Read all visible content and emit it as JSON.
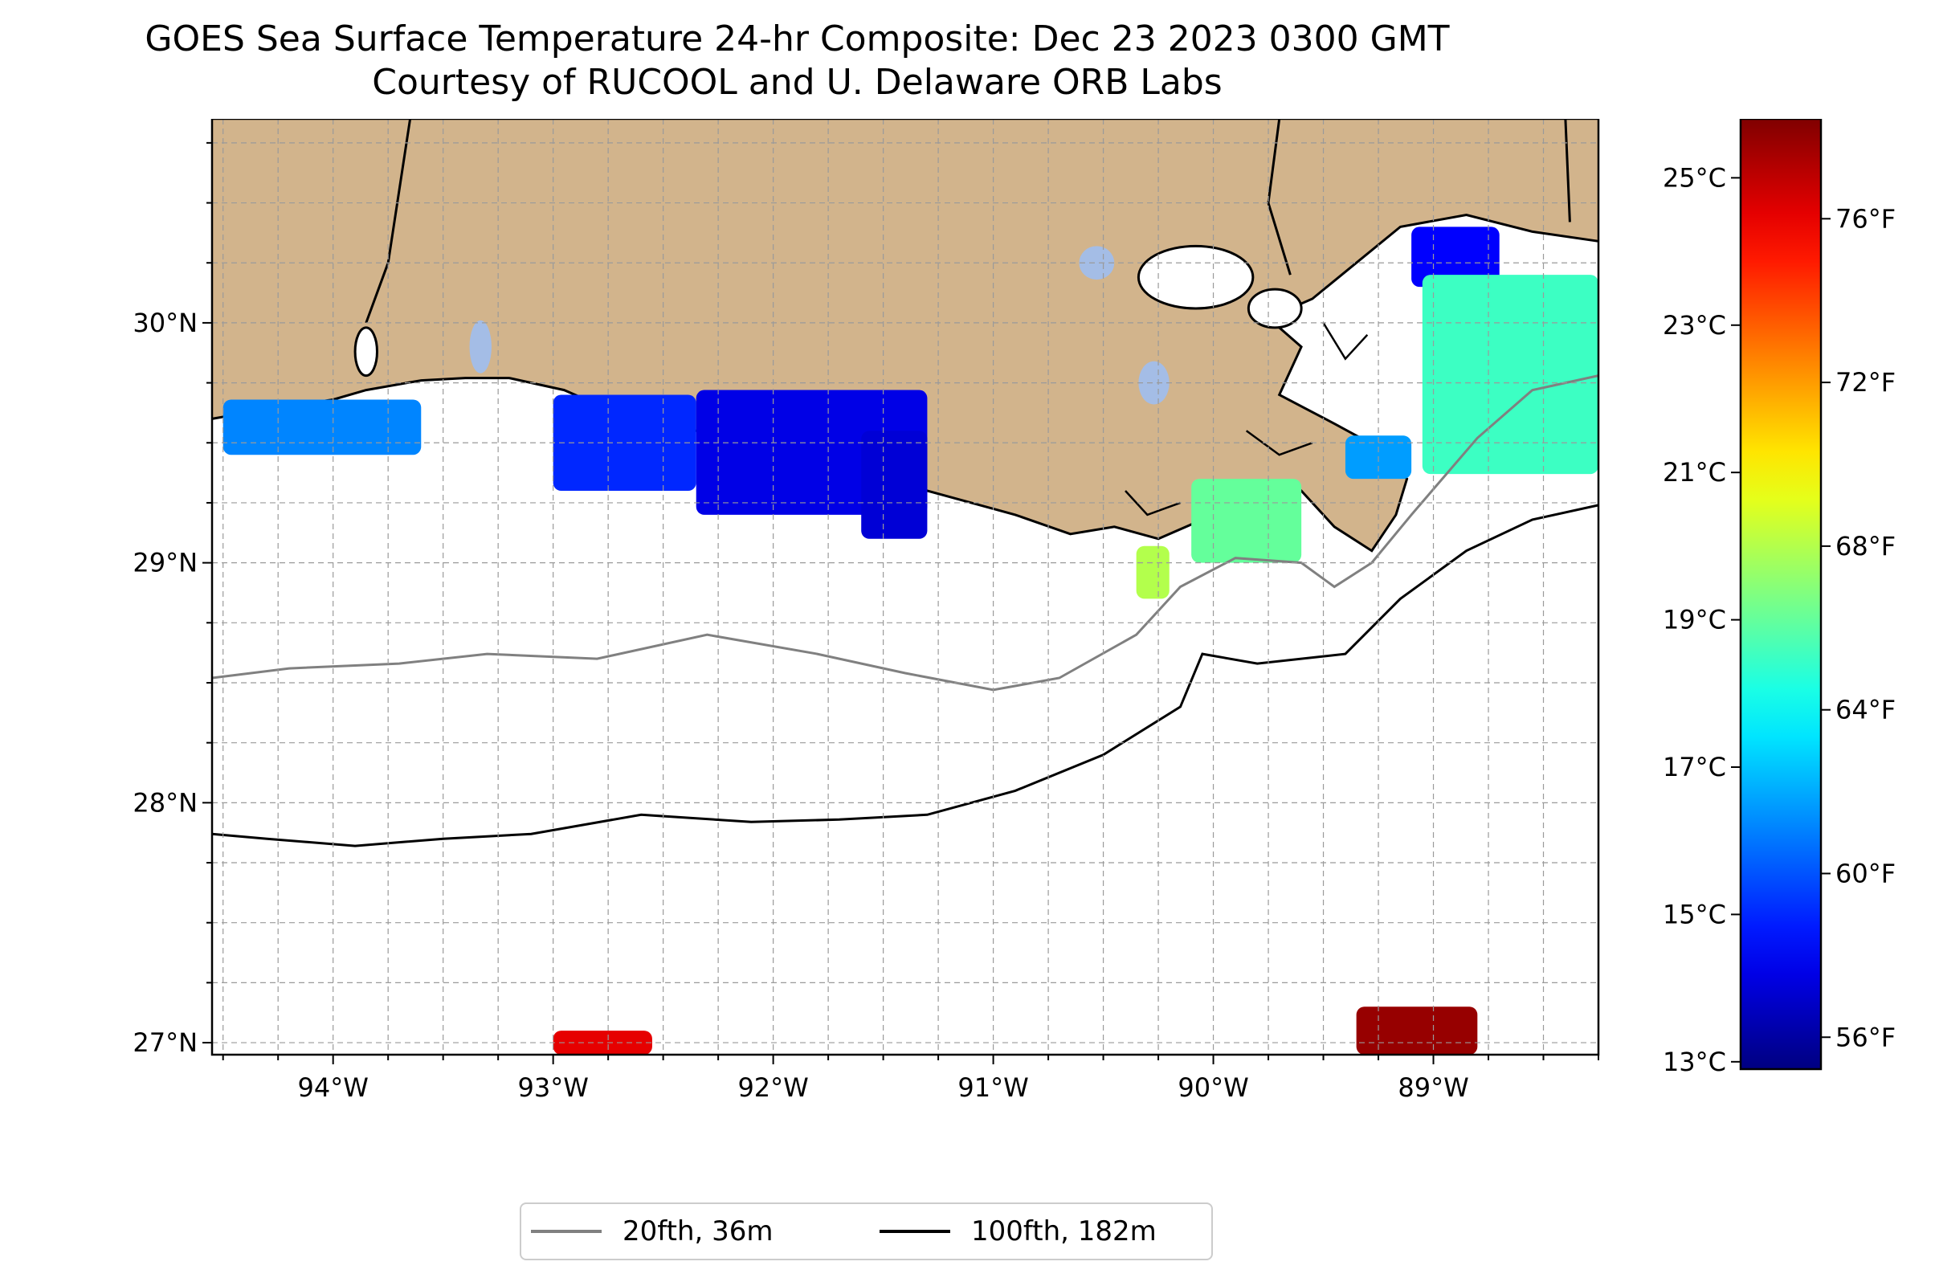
{
  "title": {
    "line1": "GOES Sea Surface Temperature 24-hr Composite: Dec 23 2023 0300 GMT",
    "line2": "Courtesy of RUCOOL and U. Delaware ORB Labs"
  },
  "map": {
    "lon_range": [
      -94.55,
      -88.25
    ],
    "lat_range": [
      26.95,
      30.85
    ],
    "lon_ticks": [
      {
        "value": -94,
        "label": "94°W"
      },
      {
        "value": -93,
        "label": "93°W"
      },
      {
        "value": -92,
        "label": "92°W"
      },
      {
        "value": -91,
        "label": "91°W"
      },
      {
        "value": -90,
        "label": "90°W"
      },
      {
        "value": -89,
        "label": "89°W"
      }
    ],
    "lat_ticks": [
      {
        "value": 30,
        "label": "30°N"
      },
      {
        "value": 29,
        "label": "29°N"
      },
      {
        "value": 28,
        "label": "28°N"
      },
      {
        "value": 27,
        "label": "27°N"
      }
    ],
    "gridlines": true,
    "land_color": "#d2b48c",
    "coast_color": "#000000",
    "sst_patches": [
      {
        "name": "sabine-patch",
        "lon": [
          -94.5,
          -93.6
        ],
        "lat": [
          29.45,
          29.68
        ],
        "temp_c": 16.2
      },
      {
        "name": "calcasieu-patch",
        "lon": [
          -93.0,
          -92.35
        ],
        "lat": [
          29.3,
          29.7
        ],
        "temp_c": 15.0
      },
      {
        "name": "vermilion-patch",
        "lon": [
          -92.35,
          -91.3
        ],
        "lat": [
          29.2,
          29.72
        ],
        "temp_c": 14.2
      },
      {
        "name": "atchafalaya-patch",
        "lon": [
          -91.6,
          -91.3
        ],
        "lat": [
          29.1,
          29.55
        ],
        "temp_c": 14.0
      },
      {
        "name": "timbalier-patch",
        "lon": [
          -90.35,
          -90.2
        ],
        "lat": [
          28.85,
          29.07
        ],
        "temp_c": 20.0
      },
      {
        "name": "grand-isle-patch",
        "lon": [
          -90.1,
          -89.6
        ],
        "lat": [
          29.0,
          29.35
        ],
        "temp_c": 19.0
      },
      {
        "name": "bird-foot-patch",
        "lon": [
          -89.4,
          -89.1
        ],
        "lat": [
          29.35,
          29.53
        ],
        "temp_c": 16.5
      },
      {
        "name": "mississippi-sound-patch",
        "lon": [
          -89.1,
          -88.7
        ],
        "lat": [
          30.15,
          30.4
        ],
        "temp_c": 14.5
      },
      {
        "name": "chandeleur-patch",
        "lon": [
          -89.05,
          -88.25
        ],
        "lat": [
          29.37,
          30.2
        ],
        "temp_c": 18.5
      },
      {
        "name": "offshore-patch-south-1",
        "lon": [
          -93.0,
          -92.55
        ],
        "lat": [
          26.95,
          27.05
        ],
        "temp_c": 24.5
      },
      {
        "name": "offshore-patch-south-2",
        "lon": [
          -89.35,
          -88.8
        ],
        "lat": [
          26.95,
          27.15
        ],
        "temp_c": 25.5
      }
    ]
  },
  "colorbar": {
    "c_range": [
      12.9,
      25.8
    ],
    "celsius_ticks": [
      {
        "value": 13,
        "label": "13°C"
      },
      {
        "value": 15,
        "label": "15°C"
      },
      {
        "value": 17,
        "label": "17°C"
      },
      {
        "value": 19,
        "label": "19°C"
      },
      {
        "value": 21,
        "label": "21°C"
      },
      {
        "value": 23,
        "label": "23°C"
      },
      {
        "value": 25,
        "label": "25°C"
      }
    ],
    "fahrenheit_ticks": [
      {
        "value": 56,
        "label": "56°F"
      },
      {
        "value": 60,
        "label": "60°F"
      },
      {
        "value": 64,
        "label": "64°F"
      },
      {
        "value": 68,
        "label": "68°F"
      },
      {
        "value": 72,
        "label": "72°F"
      },
      {
        "value": 76,
        "label": "76°F"
      }
    ],
    "colormap": "jet"
  },
  "legend": {
    "items": [
      {
        "label": "20fth, 36m",
        "color": "#808080"
      },
      {
        "label": "100fth, 182m",
        "color": "#000000"
      }
    ]
  }
}
